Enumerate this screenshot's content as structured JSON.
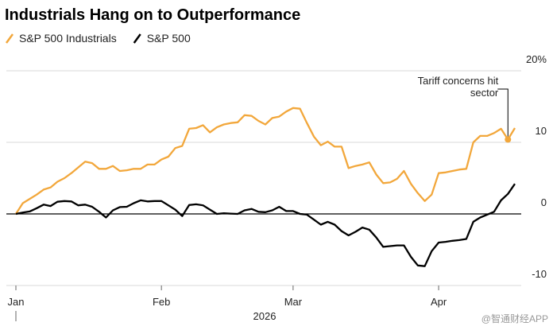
{
  "chart_data": {
    "type": "line",
    "title": "Industrials Hang on to Outperformance",
    "x_label": "2026",
    "categories": [
      "Jan",
      null,
      null,
      null,
      null,
      null,
      null,
      null,
      null,
      null,
      null,
      null,
      null,
      null,
      null,
      null,
      null,
      null,
      null,
      null,
      null,
      "Feb",
      null,
      null,
      null,
      null,
      null,
      null,
      null,
      null,
      null,
      null,
      null,
      null,
      null,
      null,
      null,
      null,
      null,
      null,
      "Mar",
      null,
      null,
      null,
      null,
      null,
      null,
      null,
      null,
      null,
      null,
      null,
      null,
      null,
      null,
      null,
      null,
      null,
      null,
      null,
      null,
      "Apr",
      null,
      null,
      null,
      null,
      null,
      null,
      null,
      null,
      null,
      null,
      null
    ],
    "series": [
      {
        "name": "S&P 500 Industrials",
        "color": "#f2a73b",
        "values": [
          0,
          1.5,
          2.1,
          2.7,
          3.4,
          3.7,
          4.5,
          5.0,
          5.7,
          6.5,
          7.3,
          7.1,
          6.3,
          6.3,
          6.7,
          6.0,
          6.1,
          6.3,
          6.3,
          6.9,
          6.9,
          7.6,
          8.0,
          9.2,
          9.5,
          11.9,
          12.0,
          12.4,
          11.4,
          12.1,
          12.5,
          12.7,
          12.8,
          13.8,
          13.7,
          13.0,
          12.5,
          13.4,
          13.6,
          14.3,
          14.8,
          14.7,
          12.7,
          10.8,
          9.6,
          10.1,
          9.4,
          9.4,
          6.4,
          6.7,
          6.9,
          7.2,
          5.5,
          4.3,
          4.4,
          4.9,
          6.0,
          4.2,
          2.9,
          1.8,
          2.7,
          5.7,
          5.8,
          6.0,
          6.2,
          6.3,
          10.0,
          10.9,
          10.9,
          11.3,
          11.9,
          10.4,
          12.0
        ]
      },
      {
        "name": "S&P 500",
        "color": "#000000",
        "values": [
          0,
          0.2,
          0.35,
          0.8,
          1.3,
          1.1,
          1.7,
          1.8,
          1.75,
          1.2,
          1.3,
          1.0,
          0.3,
          -0.5,
          0.5,
          0.95,
          1.0,
          1.5,
          1.9,
          1.75,
          1.8,
          1.8,
          1.2,
          0.6,
          -0.3,
          1.25,
          1.35,
          1.2,
          0.6,
          0,
          0.1,
          0.05,
          0,
          0.5,
          0.7,
          0.3,
          0.25,
          0.5,
          1.0,
          0.4,
          0.4,
          0,
          -0.1,
          -0.8,
          -1.5,
          -1.1,
          -1.5,
          -2.4,
          -3.0,
          -2.5,
          -1.9,
          -2.2,
          -3.3,
          -4.6,
          -4.5,
          -4.4,
          -4.4,
          -6.0,
          -7.2,
          -7.3,
          -5.2,
          -4.0,
          -3.9,
          -3.75,
          -3.65,
          -3.5,
          -1.1,
          -0.5,
          -0.1,
          0.3,
          1.9,
          2.8,
          4.2
        ]
      }
    ],
    "ylim": [
      -10,
      20
    ],
    "yticks": [
      {
        "value": 20,
        "label": "20%"
      },
      10,
      0,
      -10
    ],
    "grid": true,
    "annotation": [
      "Tariff concerns hit",
      "sector"
    ],
    "watermark": "@智通财经APP"
  }
}
